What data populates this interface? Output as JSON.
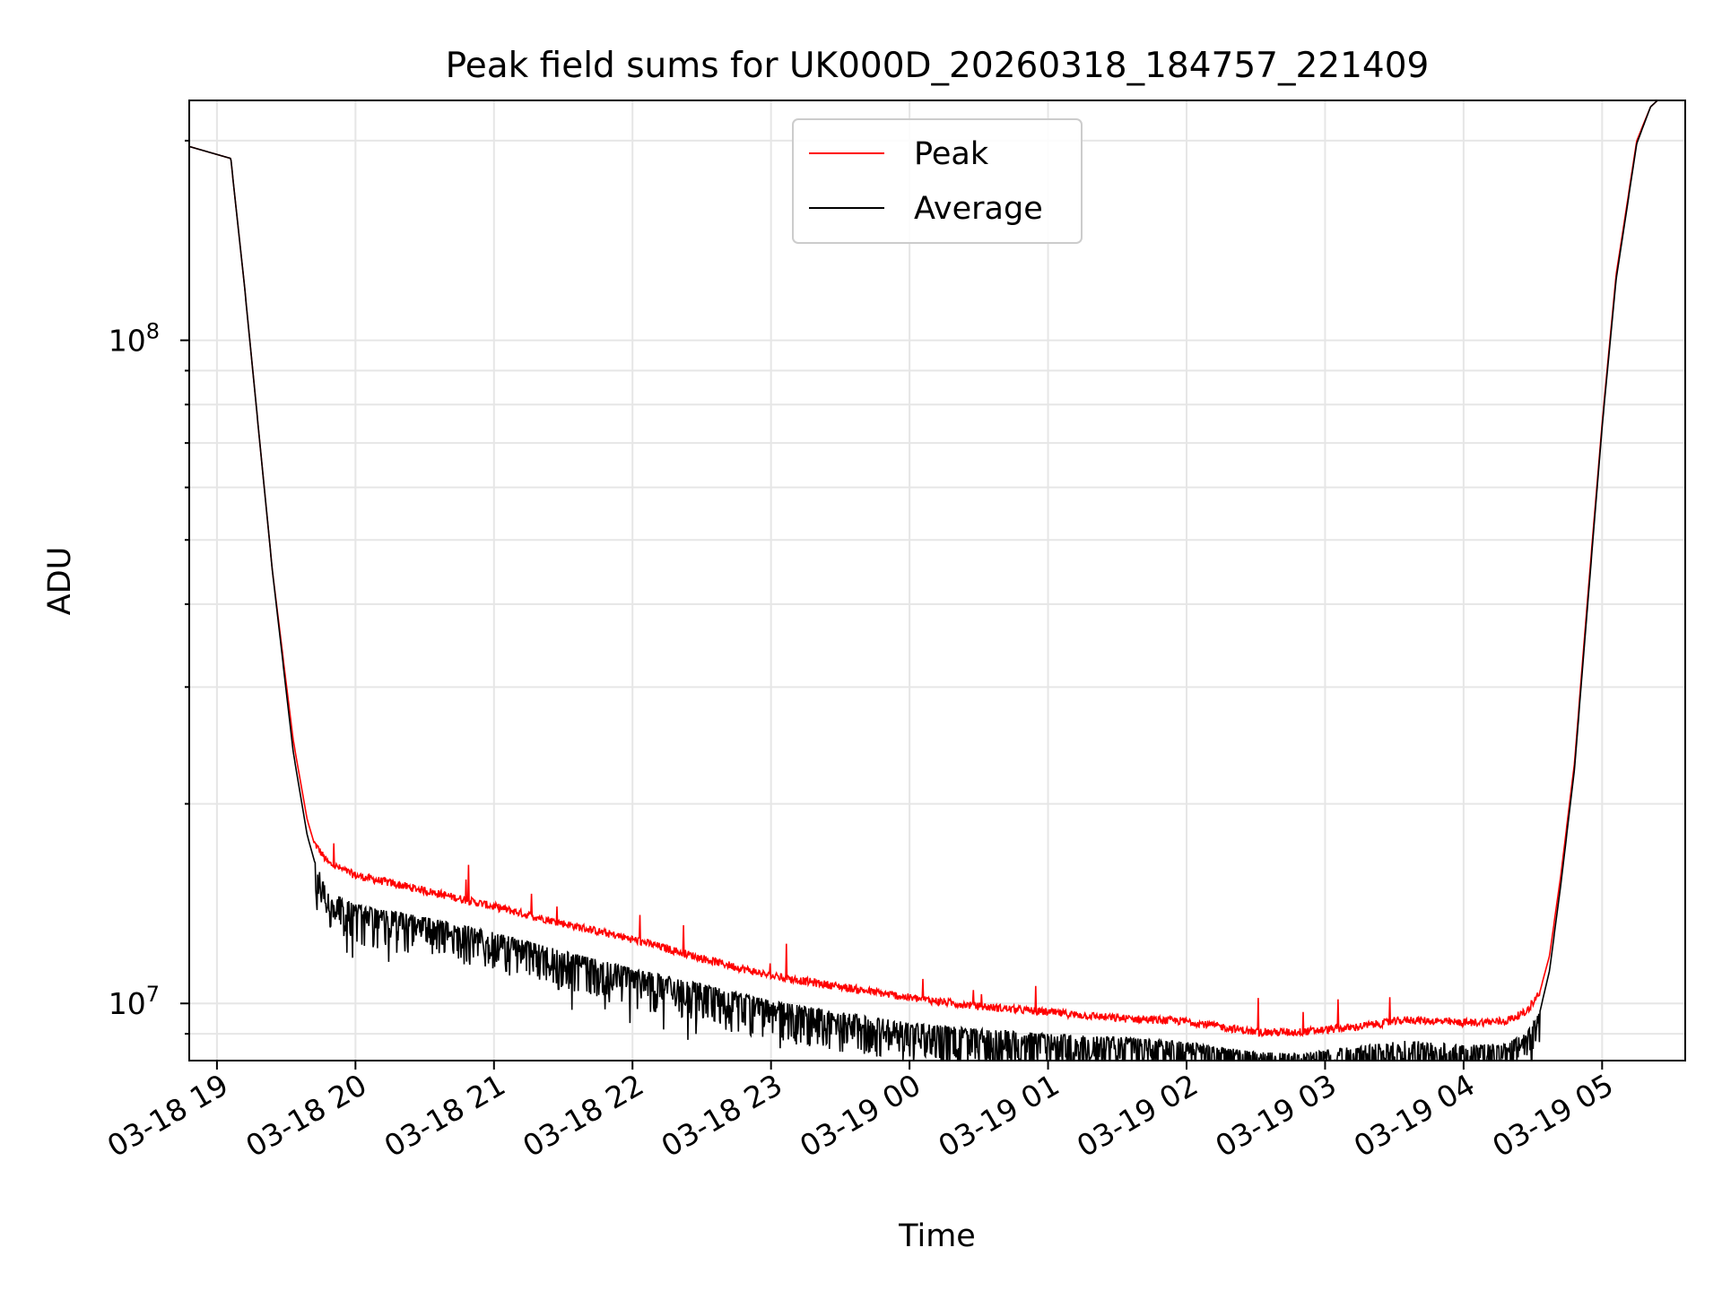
{
  "chart_data": {
    "type": "line",
    "title": "Peak field sums for UK000D_20260318_184757_221409",
    "xlabel": "Time",
    "ylabel": "ADU",
    "yscale": "log",
    "ylim": [
      8200000,
      230000000
    ],
    "xlim_hours": [
      -0.2,
      10.6
    ],
    "x_unit": "hours since 2026-03-18 19:00",
    "grid": true,
    "legend_position": "upper-center",
    "x_ticks": [
      {
        "hours": 0,
        "label": "03-18 19"
      },
      {
        "hours": 1,
        "label": "03-18 20"
      },
      {
        "hours": 2,
        "label": "03-18 21"
      },
      {
        "hours": 3,
        "label": "03-18 22"
      },
      {
        "hours": 4,
        "label": "03-18 23"
      },
      {
        "hours": 5,
        "label": "03-19 00"
      },
      {
        "hours": 6,
        "label": "03-19 01"
      },
      {
        "hours": 7,
        "label": "03-19 02"
      },
      {
        "hours": 8,
        "label": "03-19 03"
      },
      {
        "hours": 9,
        "label": "03-19 04"
      },
      {
        "hours": 10,
        "label": "03-19 05"
      }
    ],
    "y_ticks": [
      {
        "value": 10000000,
        "mantissa": "10",
        "exp": "7"
      },
      {
        "value": 100000000,
        "mantissa": "10",
        "exp": "8"
      }
    ],
    "series": [
      {
        "name": "Peak",
        "color": "#ff0000",
        "x": [
          -0.2,
          0.1,
          0.2,
          0.4,
          0.55,
          0.65,
          0.7,
          0.8,
          1.0,
          1.5,
          2.0,
          2.5,
          3.0,
          3.5,
          4.0,
          4.5,
          5.0,
          5.5,
          6.0,
          6.5,
          7.0,
          7.5,
          7.8,
          8.2,
          8.6,
          9.0,
          9.3,
          9.45,
          9.55,
          9.62,
          9.7,
          9.8,
          9.9,
          10.0,
          10.1,
          10.25,
          10.35,
          10.45,
          10.6
        ],
        "y": [
          196000000,
          188000000,
          120000000,
          45000000,
          25000000,
          19000000,
          17500000,
          16300000,
          15600000,
          14800000,
          14000000,
          13200000,
          12500000,
          11700000,
          11000000,
          10600000,
          10200000,
          9900000,
          9700000,
          9500000,
          9400000,
          9050000,
          9050000,
          9200000,
          9450000,
          9350000,
          9400000,
          9700000,
          10400000,
          11800000,
          15500000,
          23000000,
          42000000,
          75000000,
          125000000,
          200000000,
          225000000,
          235000000,
          240000000
        ]
      },
      {
        "name": "Average",
        "color": "#000000",
        "x": [
          -0.2,
          0.1,
          0.2,
          0.4,
          0.55,
          0.65,
          0.7,
          0.8,
          1.0,
          1.5,
          2.0,
          2.5,
          3.0,
          3.5,
          4.0,
          4.5,
          5.0,
          5.5,
          6.0,
          6.5,
          7.0,
          7.5,
          7.8,
          8.2,
          8.6,
          9.0,
          9.3,
          9.45,
          9.55,
          9.62,
          9.7,
          9.8,
          9.9,
          10.0,
          10.1,
          10.25,
          10.35,
          10.45,
          10.6
        ],
        "y": [
          196000000,
          188000000,
          120000000,
          45000000,
          24000000,
          18000000,
          16500000,
          14800000,
          14100000,
          13500000,
          12800000,
          12000000,
          11300000,
          10700000,
          10100000,
          9700000,
          9350000,
          9150000,
          9000000,
          8900000,
          8750000,
          8450000,
          8400000,
          8600000,
          8800000,
          8650000,
          8700000,
          9000000,
          9700000,
          11200000,
          15000000,
          22500000,
          41000000,
          74000000,
          123000000,
          198000000,
          225000000,
          235000000,
          240000000
        ]
      }
    ]
  }
}
